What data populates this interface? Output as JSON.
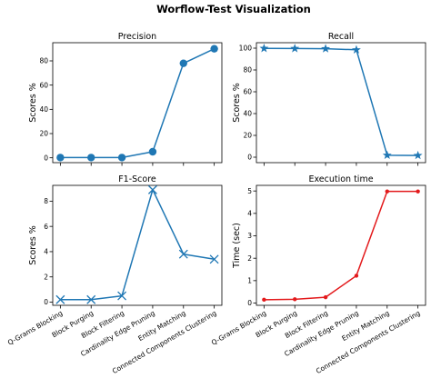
{
  "figure": {
    "title": "Worflow-Test Visualization"
  },
  "chart_data": [
    {
      "type": "line",
      "title": "Precision",
      "xlabel": "",
      "ylabel": "Scores %",
      "categories": [
        "Q-Grams Blocking",
        "Block Purging",
        "Block Filtering",
        "Cardinality Edge Pruning",
        "Entity Matching",
        "Connected Components Clustering"
      ],
      "values": [
        0.2,
        0.2,
        0.2,
        5,
        78,
        90
      ],
      "ylim": [
        -4,
        95
      ],
      "yticks": [
        0,
        20,
        40,
        60,
        80
      ],
      "marker": "circle",
      "color": "#1f77b4",
      "show_xticklabels": false
    },
    {
      "type": "line",
      "title": "Recall",
      "xlabel": "",
      "ylabel": "Scores %",
      "categories": [
        "Q-Grams Blocking",
        "Block Purging",
        "Block Filtering",
        "Cardinality Edge Pruning",
        "Entity Matching",
        "Connected Components Clustering"
      ],
      "values": [
        99.8,
        99.7,
        99.5,
        98.5,
        1.8,
        1.6
      ],
      "ylim": [
        -5,
        105
      ],
      "yticks": [
        0,
        20,
        40,
        60,
        80,
        100
      ],
      "marker": "star",
      "color": "#1f77b4",
      "show_xticklabels": false
    },
    {
      "type": "line",
      "title": "F1-Score",
      "xlabel": "",
      "ylabel": "Scores %",
      "categories": [
        "Q-Grams Blocking",
        "Block Purging",
        "Block Filtering",
        "Cardinality Edge Pruning",
        "Entity Matching",
        "Connected Components Clustering"
      ],
      "values": [
        0.2,
        0.2,
        0.5,
        8.9,
        3.8,
        3.4
      ],
      "ylim": [
        -0.25,
        9.25
      ],
      "yticks": [
        0,
        2,
        4,
        6,
        8
      ],
      "marker": "x",
      "color": "#1f77b4",
      "show_xticklabels": true
    },
    {
      "type": "line",
      "title": "Execution time",
      "xlabel": "",
      "ylabel": "Time (sec)",
      "categories": [
        "Q-Grams Blocking",
        "Block Purging",
        "Block Filtering",
        "Cardinality Edge Pruning",
        "Entity Matching",
        "Connected Components Clustering"
      ],
      "values": [
        0.15,
        0.17,
        0.26,
        1.22,
        4.98,
        4.98
      ],
      "ylim": [
        -0.1,
        5.25
      ],
      "yticks": [
        0,
        1,
        2,
        3,
        4,
        5
      ],
      "marker": "dot",
      "color": "#e31a1c",
      "show_xticklabels": true
    }
  ]
}
